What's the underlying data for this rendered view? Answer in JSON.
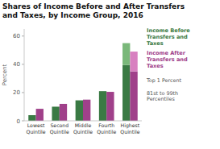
{
  "chart_data": {
    "type": "bar",
    "stacked": true,
    "grid": false,
    "title": "Shares of Income Before and After Transfers\nand Taxes, by Income Group, 2016",
    "ylabel": "Percent",
    "categories": [
      "Lowest\nQuintile",
      "Second\nQuintile",
      "Middle\nQuintile",
      "Fourth\nQuintile",
      "Highest\nQuintile"
    ],
    "segment_names": [
      "81st to 99th\nPercentiles",
      "Top 1 Percent"
    ],
    "groups": [
      {
        "name": "Income Before\nTransfers and\nTaxes",
        "series": [
          {
            "color": "#3a7a44",
            "values": [
              4.0,
              10.0,
              14.5,
              21.0,
              39.5
            ]
          },
          {
            "color": "#7ab87a",
            "values": [
              0,
              0,
              0,
              0,
              15.5
            ]
          }
        ]
      },
      {
        "name": "Income After\nTransfers and\nTaxes",
        "series": [
          {
            "color": "#a0408a",
            "values": [
              8.5,
              12.0,
              15.0,
              20.5,
              35.0
            ]
          },
          {
            "color": "#d880c0",
            "values": [
              0,
              0,
              0,
              0,
              14.0
            ]
          }
        ]
      }
    ],
    "ylim": [
      0,
      65
    ],
    "yticks": [
      0,
      20,
      40,
      60
    ]
  }
}
